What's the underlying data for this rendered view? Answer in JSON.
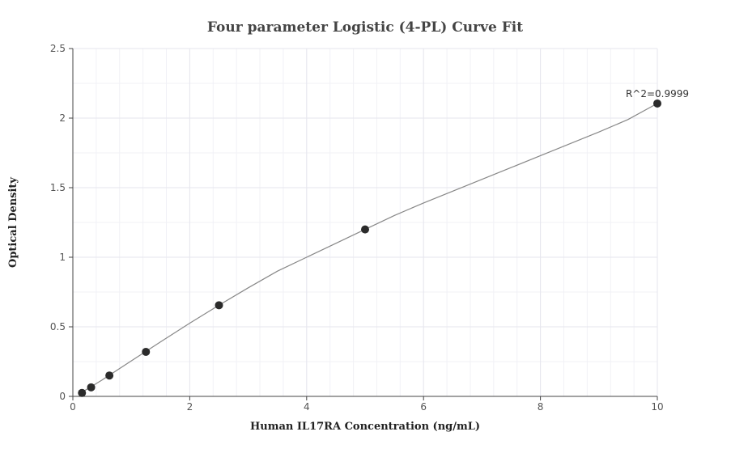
{
  "chart_data": {
    "type": "scatter",
    "title": "Four parameter Logistic (4-PL) Curve Fit",
    "xlabel": "Human IL17RA Concentration (ng/mL)",
    "ylabel": "Optical Density",
    "xlim": [
      0,
      10
    ],
    "ylim": [
      0,
      2.5
    ],
    "x_ticks": [
      0,
      2,
      4,
      6,
      8,
      10
    ],
    "y_ticks": [
      0,
      0.5,
      1,
      1.5,
      2,
      2.5
    ],
    "x_tick_labels": [
      "0",
      "2",
      "4",
      "6",
      "8",
      "10"
    ],
    "y_tick_labels": [
      "0",
      "0.5",
      "1",
      "1.5",
      "2",
      "2.5"
    ],
    "grid": true,
    "points": [
      {
        "x": 0.156,
        "y": 0.025
      },
      {
        "x": 0.3125,
        "y": 0.065
      },
      {
        "x": 0.625,
        "y": 0.15
      },
      {
        "x": 1.25,
        "y": 0.32
      },
      {
        "x": 2.5,
        "y": 0.655
      },
      {
        "x": 5,
        "y": 1.2
      },
      {
        "x": 10,
        "y": 2.105
      }
    ],
    "fit_curve": {
      "x": [
        0.1,
        0.5,
        1,
        1.5,
        2,
        2.5,
        3,
        3.5,
        4,
        4.5,
        5,
        5.5,
        6,
        6.5,
        7,
        7.5,
        8,
        8.5,
        9,
        9.5,
        10
      ],
      "y": [
        0.015,
        0.118,
        0.255,
        0.392,
        0.526,
        0.655,
        0.78,
        0.9,
        1.0,
        1.1,
        1.2,
        1.3,
        1.39,
        1.475,
        1.56,
        1.645,
        1.73,
        1.815,
        1.9,
        1.99,
        2.105
      ]
    },
    "annotation": {
      "text": "R^2=0.9999",
      "x": 10,
      "y": 2.105
    },
    "colors": {
      "point": "#2b2b2b",
      "curve": "#888888",
      "grid_major": "#e6e6ee",
      "grid_minor": "#f1f1f6",
      "axis": "#444444"
    }
  }
}
